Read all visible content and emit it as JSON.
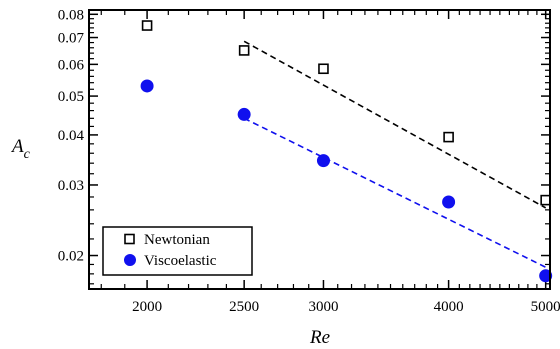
{
  "chart_data": {
    "type": "scatter",
    "title": "",
    "xlabel": "Re",
    "ylabel_main": "A",
    "ylabel_sub": "c",
    "x_scale": "log",
    "y_scale": "log",
    "xlim": [
      1750,
      5050
    ],
    "ylim": [
      0.0165,
      0.082
    ],
    "x_ticks": [
      2000,
      2500,
      3000,
      4000,
      5000
    ],
    "x_tick_labels": [
      "2000",
      "2500",
      "3000",
      "4000",
      "5000"
    ],
    "y_ticks": [
      0.02,
      0.03,
      0.04,
      0.05,
      0.06,
      0.07,
      0.08
    ],
    "y_tick_labels": [
      "0.02",
      "0.03",
      "0.04",
      "0.05",
      "0.06",
      "0.07",
      "0.08"
    ],
    "grid": false,
    "legend_position": "bottom-left",
    "series": [
      {
        "name": "Newtonian",
        "marker": "open-square",
        "color": "#000000",
        "x": [
          2000,
          2500,
          3000,
          4000,
          5000
        ],
        "y": [
          0.075,
          0.065,
          0.0585,
          0.0395,
          0.0275
        ],
        "fit": {
          "x": [
            2500,
            5000
          ],
          "y": [
            0.0685,
            0.0263
          ],
          "style": "dashed",
          "color": "#000000"
        }
      },
      {
        "name": "Viscoelastic",
        "marker": "filled-circle",
        "color": "#1010ee",
        "x": [
          2000,
          2500,
          3000,
          4000,
          5000
        ],
        "y": [
          0.053,
          0.045,
          0.0345,
          0.0272,
          0.0178
        ],
        "fit": {
          "x": [
            2500,
            5000
          ],
          "y": [
            0.044,
            0.0187
          ],
          "style": "dashed",
          "color": "#1010ee"
        }
      }
    ]
  }
}
